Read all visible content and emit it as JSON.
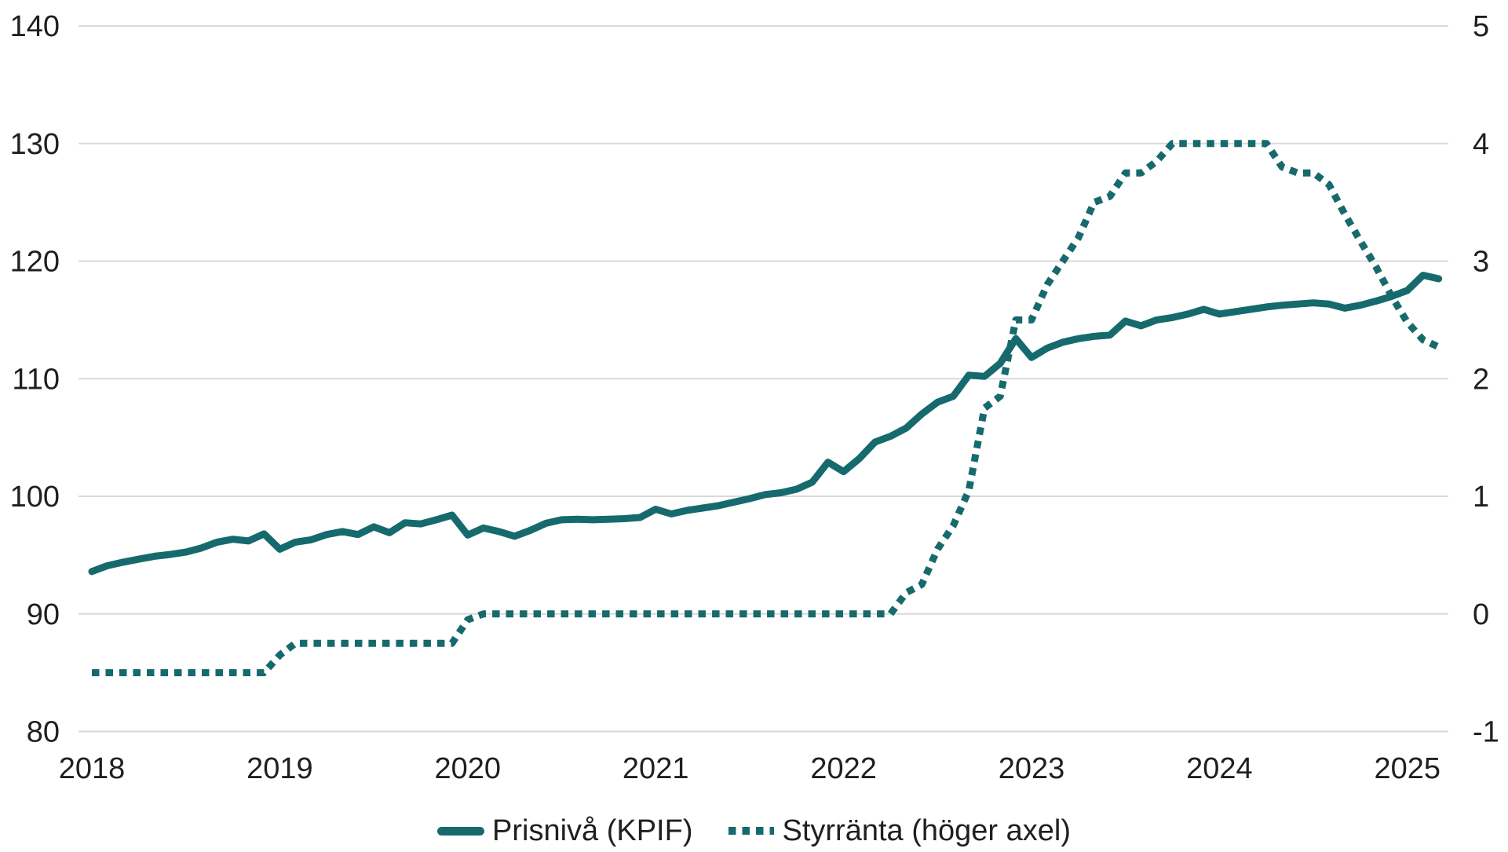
{
  "legend": {
    "kpif_label": "Prisnivå (KPIF)",
    "styrranta_label": "Styrränta (höger axel)"
  },
  "colors": {
    "line_teal": "#166a6d",
    "grid_gray": "#d9d9d9",
    "text_dark": "#1f1f1f"
  },
  "chart_data": {
    "type": "line",
    "title": "",
    "xlabel": "",
    "ylabel_left": "",
    "ylabel_right": "",
    "grid": true,
    "legend_position": "bottom-center",
    "x_tick_labels": [
      "2018",
      "2019",
      "2020",
      "2021",
      "2022",
      "2023",
      "2024",
      "2025"
    ],
    "y_left_ticks": [
      140,
      130,
      120,
      110,
      100,
      90,
      80
    ],
    "y_left_range": [
      80,
      140
    ],
    "y_right_ticks": [
      5,
      4,
      3,
      2,
      1,
      0,
      -1
    ],
    "y_right_range": [
      -1,
      5
    ],
    "x": [
      "2018-01",
      "2018-02",
      "2018-03",
      "2018-04",
      "2018-05",
      "2018-06",
      "2018-07",
      "2018-08",
      "2018-09",
      "2018-10",
      "2018-11",
      "2018-12",
      "2019-01",
      "2019-02",
      "2019-03",
      "2019-04",
      "2019-05",
      "2019-06",
      "2019-07",
      "2019-08",
      "2019-09",
      "2019-10",
      "2019-11",
      "2019-12",
      "2020-01",
      "2020-02",
      "2020-03",
      "2020-04",
      "2020-05",
      "2020-06",
      "2020-07",
      "2020-08",
      "2020-09",
      "2020-10",
      "2020-11",
      "2020-12",
      "2021-01",
      "2021-02",
      "2021-03",
      "2021-04",
      "2021-05",
      "2021-06",
      "2021-07",
      "2021-08",
      "2021-09",
      "2021-10",
      "2021-11",
      "2021-12",
      "2022-01",
      "2022-02",
      "2022-03",
      "2022-04",
      "2022-05",
      "2022-06",
      "2022-07",
      "2022-08",
      "2022-09",
      "2022-10",
      "2022-11",
      "2022-12",
      "2023-01",
      "2023-02",
      "2023-03",
      "2023-04",
      "2023-05",
      "2023-06",
      "2023-07",
      "2023-08",
      "2023-09",
      "2023-10",
      "2023-11",
      "2023-12",
      "2024-01",
      "2024-02",
      "2024-03",
      "2024-04",
      "2024-05",
      "2024-06",
      "2024-07",
      "2024-08",
      "2024-09",
      "2024-10",
      "2024-11",
      "2024-12",
      "2025-01",
      "2025-02",
      "2025-03"
    ],
    "series": [
      {
        "name": "Prisnivå (KPIF)",
        "axis": "left",
        "style": "solid",
        "color": "#166a6d",
        "values": [
          93.6,
          94.1,
          94.4,
          94.65,
          94.9,
          95.05,
          95.25,
          95.6,
          96.1,
          96.35,
          96.2,
          96.8,
          95.5,
          96.1,
          96.3,
          96.75,
          97.0,
          96.75,
          97.4,
          96.9,
          97.75,
          97.65,
          98.0,
          98.4,
          96.7,
          97.3,
          97.0,
          96.6,
          97.1,
          97.7,
          98.0,
          98.05,
          98.0,
          98.05,
          98.1,
          98.2,
          98.9,
          98.5,
          98.8,
          99.0,
          99.2,
          99.5,
          99.8,
          100.15,
          100.3,
          100.6,
          101.2,
          102.9,
          102.1,
          103.2,
          104.6,
          105.1,
          105.8,
          107.0,
          108.0,
          108.5,
          110.3,
          110.2,
          111.3,
          113.4,
          111.8,
          112.6,
          113.1,
          113.4,
          113.6,
          113.7,
          114.9,
          114.5,
          115.0,
          115.2,
          115.5,
          115.9,
          115.5,
          115.7,
          115.9,
          116.1,
          116.25,
          116.35,
          116.45,
          116.35,
          116.0,
          116.25,
          116.6,
          117.0,
          117.5,
          118.8,
          118.5
        ]
      },
      {
        "name": "Styrränta (höger axel)",
        "axis": "right",
        "style": "dotted",
        "color": "#166a6d",
        "values": [
          -0.5,
          -0.5,
          -0.5,
          -0.5,
          -0.5,
          -0.5,
          -0.5,
          -0.5,
          -0.5,
          -0.5,
          -0.5,
          -0.5,
          -0.35,
          -0.25,
          -0.25,
          -0.25,
          -0.25,
          -0.25,
          -0.25,
          -0.25,
          -0.25,
          -0.25,
          -0.25,
          -0.25,
          -0.05,
          0,
          0,
          0,
          0,
          0,
          0,
          0,
          0,
          0,
          0,
          0,
          0,
          0,
          0,
          0,
          0,
          0,
          0,
          0,
          0,
          0,
          0,
          0,
          0,
          0,
          0,
          0,
          0.18,
          0.25,
          0.55,
          0.75,
          1.05,
          1.75,
          1.85,
          2.5,
          2.5,
          2.8,
          3.0,
          3.2,
          3.5,
          3.55,
          3.75,
          3.75,
          3.85,
          4.0,
          4.0,
          4.0,
          4.0,
          4.0,
          4.0,
          4.0,
          3.8,
          3.75,
          3.75,
          3.65,
          3.4,
          3.17,
          2.95,
          2.7,
          2.48,
          2.33,
          2.27
        ]
      }
    ]
  }
}
